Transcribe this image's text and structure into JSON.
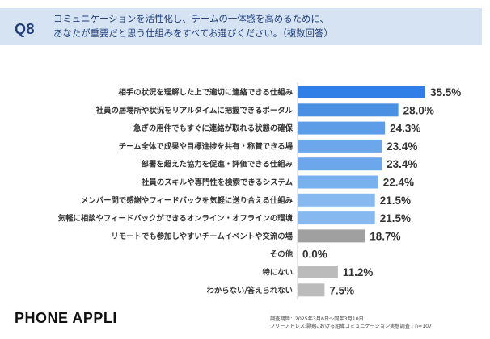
{
  "header": {
    "q_label": "Q8",
    "question_line1": "コミュニケーションを活性化し、チームの一体感を高めるために、",
    "question_line2": "あなたが重要だと思う仕組みをすべてお選びください。（複数回答）"
  },
  "chart_data": {
    "type": "bar",
    "orientation": "horizontal",
    "categories": [
      "相手の状況を理解した上で適切に連絡できる仕組み",
      "社員の居場所や状況をリアルタイムに把握できるポータル",
      "急ぎの用件でもすぐに連絡が取れる状態の確保",
      "チーム全体で成果や目標進捗を共有・称賛できる場",
      "部署を超えた協力を促進・評価できる仕組み",
      "社員のスキルや専門性を検索できるシステム",
      "メンバー間で感謝やフィードバックを気軽に送り合える仕組み",
      "気軽に相談やフィードバックができるオンライン・オフラインの環境",
      "リモートでも参加しやすいチームイベントや交流の場",
      "その他",
      "特にない",
      "わからない/答えられない"
    ],
    "values": [
      35.5,
      28.0,
      24.3,
      23.4,
      23.4,
      22.4,
      21.5,
      21.5,
      18.7,
      0.0,
      11.2,
      7.5
    ],
    "value_labels": [
      "35.5%",
      "28.0%",
      "24.3%",
      "23.4%",
      "23.4%",
      "22.4%",
      "21.5%",
      "21.5%",
      "18.7%",
      "0.0%",
      "11.2%",
      "7.5%"
    ],
    "colors": [
      "#2f7fe6",
      "#4a90e2",
      "#5d9de8",
      "#6ba7ea",
      "#6ba7ea",
      "#79b0ee",
      "#86b9f0",
      "#86b9f0",
      "#a0a0a0",
      "#bbbbbb",
      "#bbbbbb",
      "#bbbbbb"
    ],
    "xlim": [
      0,
      35.5
    ],
    "grid": false,
    "legend": "none"
  },
  "footer": {
    "logo": "PHONE APPLI",
    "survey_line1": "調査期間：2025年3月6日〜同年3月10日",
    "survey_line2": "フリーアドレス環境における組織コミュニケーション実態調査｜n=107"
  }
}
